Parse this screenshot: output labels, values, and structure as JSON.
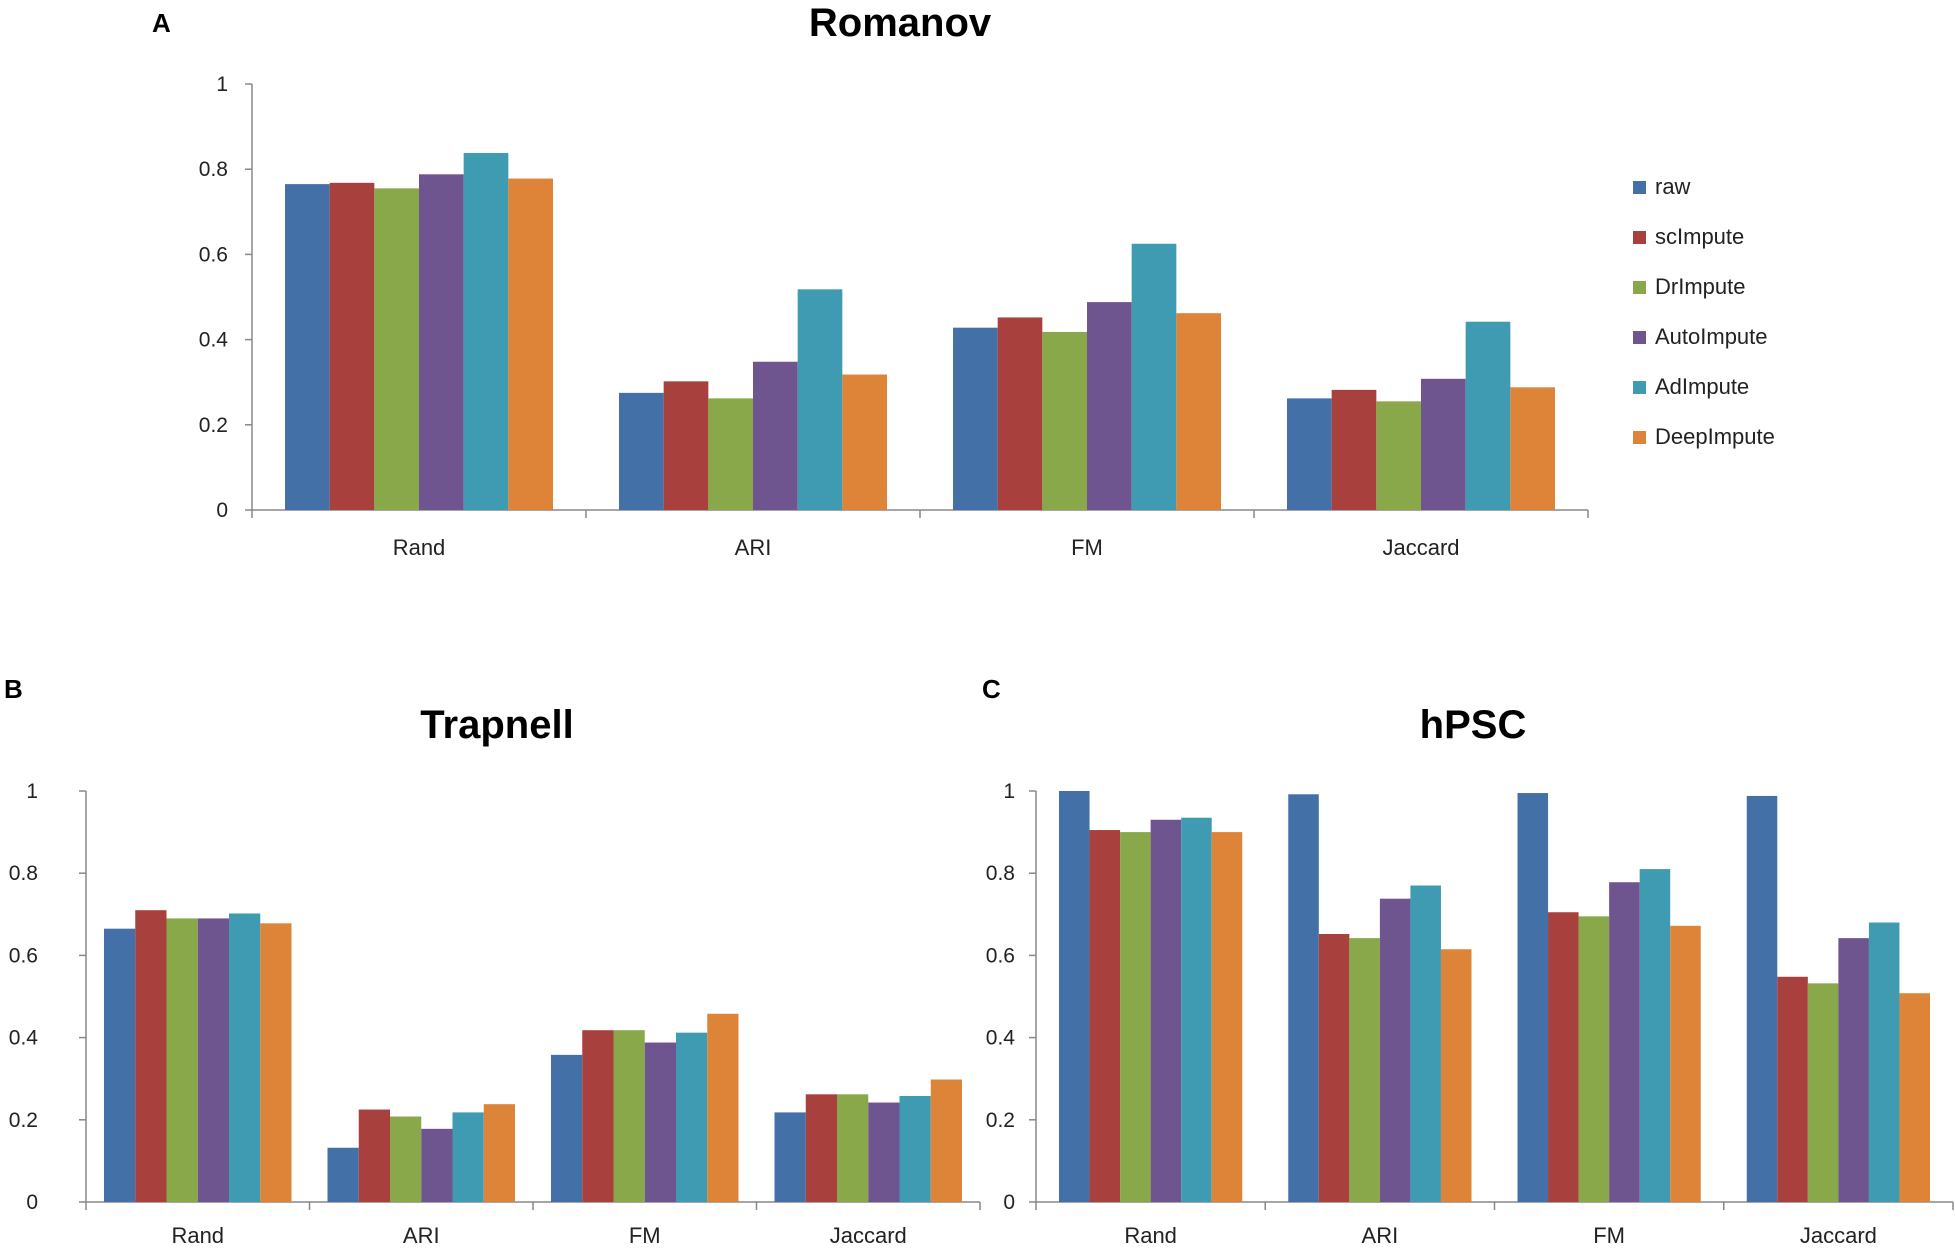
{
  "colors": {
    "raw": "#4470A8",
    "scImpute": "#A8403E",
    "DrImpute": "#88A84A",
    "AutoImpute": "#6F5590",
    "AdImpute": "#3E9BB2",
    "DeepImpute": "#DD8438"
  },
  "legend": [
    "raw",
    "scImpute",
    "DrImpute",
    "AutoImpute",
    "AdImpute",
    "DeepImpute"
  ],
  "chart_data": [
    {
      "panel": "A",
      "type": "bar",
      "title": "Romanov",
      "categories": [
        "Rand",
        "ARI",
        "FM",
        "Jaccard"
      ],
      "ylim": [
        0,
        1
      ],
      "yticks": [
        "0",
        "0.2",
        "0.4",
        "0.6",
        "0.8",
        "1"
      ],
      "xlabel": "",
      "ylabel": "",
      "series": [
        {
          "name": "raw",
          "values": [
            0.765,
            0.275,
            0.428,
            0.262
          ]
        },
        {
          "name": "scImpute",
          "values": [
            0.768,
            0.302,
            0.452,
            0.282
          ]
        },
        {
          "name": "DrImpute",
          "values": [
            0.755,
            0.262,
            0.418,
            0.255
          ]
        },
        {
          "name": "AutoImpute",
          "values": [
            0.788,
            0.348,
            0.488,
            0.308
          ]
        },
        {
          "name": "AdImpute",
          "values": [
            0.838,
            0.518,
            0.625,
            0.442
          ]
        },
        {
          "name": "DeepImpute",
          "values": [
            0.778,
            0.318,
            0.462,
            0.288
          ]
        }
      ]
    },
    {
      "panel": "B",
      "type": "bar",
      "title": "Trapnell",
      "categories": [
        "Rand",
        "ARI",
        "FM",
        "Jaccard"
      ],
      "ylim": [
        0,
        1
      ],
      "yticks": [
        "0",
        "0.2",
        "0.4",
        "0.6",
        "0.8",
        "1"
      ],
      "xlabel": "",
      "ylabel": "",
      "series": [
        {
          "name": "raw",
          "values": [
            0.665,
            0.132,
            0.358,
            0.218
          ]
        },
        {
          "name": "scImpute",
          "values": [
            0.71,
            0.225,
            0.418,
            0.262
          ]
        },
        {
          "name": "DrImpute",
          "values": [
            0.69,
            0.208,
            0.418,
            0.262
          ]
        },
        {
          "name": "AutoImpute",
          "values": [
            0.69,
            0.178,
            0.388,
            0.242
          ]
        },
        {
          "name": "AdImpute",
          "values": [
            0.702,
            0.218,
            0.412,
            0.258
          ]
        },
        {
          "name": "DeepImpute",
          "values": [
            0.678,
            0.238,
            0.458,
            0.298
          ]
        }
      ]
    },
    {
      "panel": "C",
      "type": "bar",
      "title": "hPSC",
      "categories": [
        "Rand",
        "ARI",
        "FM",
        "Jaccard"
      ],
      "ylim": [
        0,
        1
      ],
      "yticks": [
        "0",
        "0.2",
        "0.4",
        "0.6",
        "0.8",
        "1"
      ],
      "xlabel": "",
      "ylabel": "",
      "series": [
        {
          "name": "raw",
          "values": [
            1.0,
            0.992,
            0.995,
            0.988
          ]
        },
        {
          "name": "scImpute",
          "values": [
            0.905,
            0.652,
            0.705,
            0.548
          ]
        },
        {
          "name": "DrImpute",
          "values": [
            0.9,
            0.642,
            0.695,
            0.532
          ]
        },
        {
          "name": "AutoImpute",
          "values": [
            0.93,
            0.738,
            0.778,
            0.642
          ]
        },
        {
          "name": "AdImpute",
          "values": [
            0.935,
            0.77,
            0.81,
            0.68
          ]
        },
        {
          "name": "DeepImpute",
          "values": [
            0.9,
            0.615,
            0.672,
            0.508
          ]
        }
      ]
    }
  ]
}
